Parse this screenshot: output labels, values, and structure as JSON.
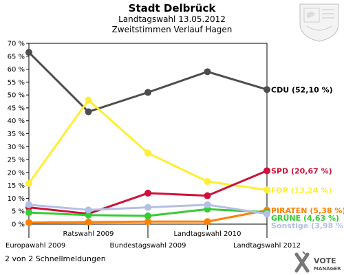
{
  "chart_data": {
    "type": "line",
    "title": "Stadt Delbrück",
    "subtitle_line1": "Landtagswahl 13.05.2012",
    "subtitle_line2": "Zweitstimmen Verlauf Hagen",
    "x": [
      "Europawahl 2009",
      "Ratswahl 2009",
      "Bundestagswahl 2009",
      "Landtagswahl 2010",
      "Landtagswahl 2012"
    ],
    "ylim": [
      0,
      70
    ],
    "yticks": [
      "0 %",
      "5 %",
      "10 %",
      "15 %",
      "20 %",
      "25 %",
      "30 %",
      "35 %",
      "40 %",
      "45 %",
      "50 %",
      "55 %",
      "60 %",
      "65 %",
      "70 %"
    ],
    "series": [
      {
        "name": "CDU",
        "end_label": "CDU (52,10 %)",
        "color": "#4d4d4d",
        "label_color": "#000000",
        "values": [
          66.5,
          43.5,
          51.0,
          59.0,
          52.1
        ]
      },
      {
        "name": "FDP",
        "end_label": "FDP (13,24 %)",
        "color": "#ffee33",
        "label_color": "#ffee33",
        "values": [
          15.8,
          48.0,
          27.5,
          16.5,
          13.24
        ]
      },
      {
        "name": "SPD",
        "end_label": "SPD (20,67 %)",
        "color": "#d0103a",
        "label_color": "#d0103a",
        "values": [
          6.5,
          4.0,
          12.0,
          11.0,
          20.67
        ]
      },
      {
        "name": "PIRATEN",
        "end_label": "PIRATEN (5,38 %)",
        "color": "#ff8000",
        "label_color": "#ff8000",
        "values": [
          0.6,
          0.8,
          1.0,
          1.0,
          5.38
        ]
      },
      {
        "name": "GRÜNE",
        "end_label": "GRÜNE (4,63 %)",
        "color": "#33cc33",
        "label_color": "#33cc33",
        "values": [
          4.5,
          3.5,
          3.2,
          5.8,
          4.63
        ]
      },
      {
        "name": "Sonstige",
        "end_label": "Sonstige (3,98 %)",
        "color": "#b3bfe6",
        "label_color": "#b3bfe6",
        "values": [
          7.5,
          5.5,
          6.5,
          7.5,
          3.98
        ]
      }
    ],
    "grid": false,
    "legend": "end-labels-right"
  },
  "footer": {
    "message": "2 von 2 Schnellmeldungen",
    "brand_top": "VOTE",
    "brand_bottom": "MANAGER"
  }
}
